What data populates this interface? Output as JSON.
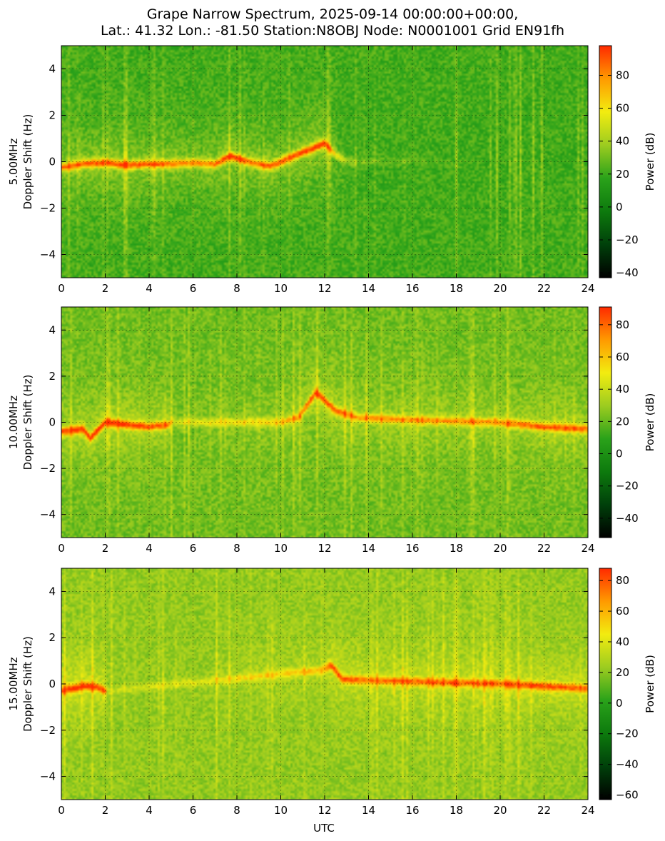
{
  "figure": {
    "title_line1": "Grape Narrow Spectrum, 2025-09-14 00:00:00+00:00,",
    "title_line2": "Lat.: 41.32 Lon.: -81.50 Station:N8OBJ Node: N0001001 Grid EN91fh",
    "xlabel": "UTC"
  },
  "colors": {
    "colormap": [
      "#000000",
      "#00400a",
      "#0d7a0d",
      "#2aa21a",
      "#9ccc20",
      "#f2ec10",
      "#ff9a00",
      "#ff2a00"
    ],
    "grid": "#000000"
  },
  "chart_data": [
    {
      "type": "heatmap",
      "ylabel_freq": "5.00MHz",
      "ylabel": "Doppler Shift (Hz)",
      "xlim": [
        0,
        24
      ],
      "ylim": [
        -5,
        5
      ],
      "xticks": [
        0,
        2,
        4,
        6,
        8,
        10,
        12,
        14,
        16,
        18,
        20,
        22,
        24
      ],
      "yticks": [
        -4,
        -2,
        0,
        2,
        4
      ],
      "grid": true,
      "colorbar": {
        "label": "Power (dB)",
        "range": [
          -43,
          98
        ],
        "ticks": [
          -40,
          -20,
          0,
          20,
          40,
          60,
          80
        ]
      },
      "trace": {
        "x": [
          0,
          1,
          2,
          3,
          4,
          5,
          6,
          7,
          7.7,
          8.5,
          9.5,
          10.5,
          11.5,
          12,
          12.5,
          13,
          14,
          20,
          24
        ],
        "y": [
          -0.25,
          -0.1,
          -0.05,
          -0.15,
          -0.1,
          -0.1,
          -0.05,
          -0.1,
          0.25,
          0.0,
          -0.2,
          0.2,
          0.6,
          0.8,
          0.3,
          0.0,
          0.0,
          0.0,
          0.0
        ],
        "peak_db": [
          80,
          85,
          85,
          85,
          85,
          80,
          75,
          80,
          90,
          80,
          85,
          85,
          90,
          95,
          60,
          45,
          38,
          30,
          30
        ]
      }
    },
    {
      "type": "heatmap",
      "ylabel_freq": "10.00MHz",
      "ylabel": "Doppler Shift (Hz)",
      "xlim": [
        0,
        24
      ],
      "ylim": [
        -5,
        5
      ],
      "xticks": [
        0,
        2,
        4,
        6,
        8,
        10,
        12,
        14,
        16,
        18,
        20,
        22,
        24
      ],
      "yticks": [
        -4,
        -2,
        0,
        2,
        4
      ],
      "grid": true,
      "colorbar": {
        "label": "Power (dB)",
        "range": [
          -52,
          91
        ],
        "ticks": [
          -40,
          -20,
          0,
          20,
          40,
          60,
          80
        ]
      },
      "trace": {
        "x": [
          0,
          1,
          1.3,
          2,
          3,
          4,
          4.9,
          5,
          6,
          8,
          10,
          10.8,
          11.6,
          12.5,
          13.5,
          16,
          20,
          22,
          24
        ],
        "y": [
          -0.4,
          -0.3,
          -0.7,
          0.0,
          -0.1,
          -0.2,
          -0.1,
          0.0,
          0.0,
          0.0,
          0.0,
          0.2,
          1.3,
          0.5,
          0.2,
          0.1,
          0.0,
          -0.2,
          -0.3
        ],
        "peak_db": [
          80,
          85,
          85,
          85,
          85,
          80,
          75,
          50,
          50,
          55,
          60,
          70,
          85,
          80,
          70,
          70,
          70,
          80,
          75
        ]
      }
    },
    {
      "type": "heatmap",
      "ylabel_freq": "15.00MHz",
      "ylabel": "Doppler Shift (Hz)",
      "xlim": [
        0,
        24
      ],
      "ylim": [
        -5,
        5
      ],
      "xticks": [
        0,
        2,
        4,
        6,
        8,
        10,
        12,
        14,
        16,
        18,
        20,
        22,
        24
      ],
      "yticks": [
        -4,
        -2,
        0,
        2,
        4
      ],
      "grid": true,
      "colorbar": {
        "label": "Power (dB)",
        "range": [
          -63,
          88
        ],
        "ticks": [
          -60,
          -40,
          -20,
          0,
          20,
          40,
          60,
          80
        ]
      },
      "trace": {
        "x": [
          0,
          0.5,
          1,
          1.5,
          2,
          2.1,
          11.9,
          12.3,
          12.8,
          14,
          16,
          18,
          20,
          22,
          24
        ],
        "y": [
          -0.3,
          -0.2,
          -0.1,
          -0.1,
          -0.3,
          -0.3,
          0.6,
          0.8,
          0.2,
          0.15,
          0.1,
          0.05,
          0.0,
          -0.1,
          -0.2
        ],
        "peak_db": [
          80,
          85,
          85,
          80,
          75,
          40,
          60,
          80,
          80,
          70,
          75,
          75,
          75,
          80,
          75
        ]
      }
    }
  ]
}
